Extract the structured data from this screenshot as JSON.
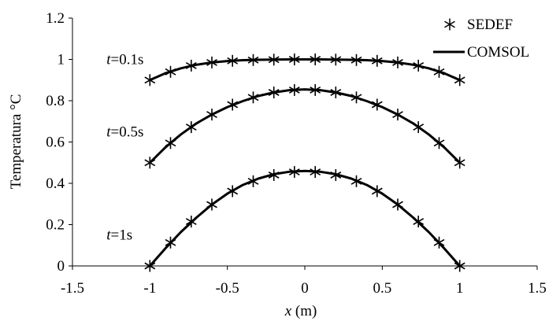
{
  "chart_data": {
    "type": "line",
    "title": "",
    "xlabel": {
      "var": "x",
      "unit": " (m)"
    },
    "ylabel": "Temperatura °C",
    "xlim": [
      -1.5,
      1.5
    ],
    "ylim": [
      0,
      1.2
    ],
    "xticks": [
      -1.5,
      -1,
      -0.5,
      0,
      0.5,
      1,
      1.5
    ],
    "xtick_labels": [
      "-1.5",
      "-1",
      "-0.5",
      "0",
      "0.5",
      "1",
      "1.5"
    ],
    "yticks": [
      0,
      0.2,
      0.4,
      0.6,
      0.8,
      1,
      1.2
    ],
    "ytick_labels": [
      "0",
      "0.2",
      "0.4",
      "0.6",
      "0.8",
      "1",
      "1.2"
    ],
    "grid": false,
    "legend": {
      "placement": "top-right",
      "entries": [
        {
          "label": "SEDEF",
          "marker": "asterisk"
        },
        {
          "label": "COMSOL",
          "marker": "line"
        }
      ]
    },
    "curve_labels": [
      {
        "var": "t",
        "text": "=0.1s",
        "anchor_x": -1.28,
        "anchor_y": 1.0
      },
      {
        "var": "t",
        "text": "=0.5s",
        "anchor_x": -1.28,
        "anchor_y": 0.65
      },
      {
        "var": "t",
        "text": "=1s",
        "anchor_x": -1.28,
        "anchor_y": 0.15
      }
    ],
    "series": [
      {
        "time": "0.1s",
        "sedef_x": [
          -1.0,
          -0.867,
          -0.733,
          -0.6,
          -0.467,
          -0.333,
          -0.2,
          -0.067,
          0.067,
          0.2,
          0.333,
          0.467,
          0.6,
          0.733,
          0.867,
          1.0
        ],
        "sedef_y": [
          0.9,
          0.94,
          0.97,
          0.985,
          0.993,
          0.997,
          0.999,
          1.0,
          1.0,
          0.999,
          0.997,
          0.993,
          0.985,
          0.97,
          0.94,
          0.9
        ],
        "comsol_x": [
          -1.0,
          -0.9,
          -0.8,
          -0.7,
          -0.6,
          -0.5,
          -0.4,
          -0.3,
          -0.2,
          -0.1,
          0.0,
          0.1,
          0.2,
          0.3,
          0.4,
          0.5,
          0.6,
          0.7,
          0.8,
          0.9,
          1.0
        ],
        "comsol_y": [
          0.9,
          0.933,
          0.957,
          0.974,
          0.985,
          0.992,
          0.996,
          0.998,
          0.999,
          1.0,
          1.0,
          1.0,
          0.999,
          0.998,
          0.996,
          0.992,
          0.985,
          0.974,
          0.957,
          0.933,
          0.9
        ]
      },
      {
        "time": "0.5s",
        "sedef_x": [
          -1.0,
          -0.867,
          -0.733,
          -0.6,
          -0.467,
          -0.333,
          -0.2,
          -0.067,
          0.067,
          0.2,
          0.333,
          0.467,
          0.6,
          0.733,
          0.867,
          1.0
        ],
        "sedef_y": [
          0.5,
          0.595,
          0.672,
          0.733,
          0.781,
          0.816,
          0.84,
          0.852,
          0.852,
          0.84,
          0.816,
          0.781,
          0.733,
          0.672,
          0.595,
          0.5
        ],
        "comsol_x": [
          -1.0,
          -0.9,
          -0.8,
          -0.7,
          -0.6,
          -0.5,
          -0.4,
          -0.3,
          -0.2,
          -0.1,
          0.0,
          0.1,
          0.2,
          0.3,
          0.4,
          0.5,
          0.6,
          0.7,
          0.8,
          0.9,
          1.0
        ],
        "comsol_y": [
          0.5,
          0.574,
          0.637,
          0.69,
          0.733,
          0.769,
          0.798,
          0.823,
          0.84,
          0.851,
          0.855,
          0.851,
          0.84,
          0.823,
          0.798,
          0.769,
          0.733,
          0.69,
          0.637,
          0.574,
          0.5
        ]
      },
      {
        "time": "1s",
        "sedef_x": [
          -1.0,
          -0.867,
          -0.733,
          -0.6,
          -0.467,
          -0.333,
          -0.2,
          -0.067,
          0.067,
          0.2,
          0.333,
          0.467,
          0.6,
          0.733,
          0.867,
          1.0
        ],
        "sedef_y": [
          0.0,
          0.113,
          0.215,
          0.297,
          0.362,
          0.41,
          0.44,
          0.455,
          0.455,
          0.44,
          0.41,
          0.362,
          0.297,
          0.215,
          0.113,
          0.0
        ],
        "comsol_x": [
          -1.0,
          -0.9,
          -0.8,
          -0.7,
          -0.6,
          -0.5,
          -0.4,
          -0.3,
          -0.2,
          -0.1,
          0.0,
          0.1,
          0.2,
          0.3,
          0.4,
          0.5,
          0.6,
          0.7,
          0.8,
          0.9,
          1.0
        ],
        "comsol_y": [
          0.0,
          0.085,
          0.164,
          0.234,
          0.297,
          0.35,
          0.392,
          0.423,
          0.444,
          0.456,
          0.46,
          0.456,
          0.444,
          0.423,
          0.392,
          0.35,
          0.297,
          0.234,
          0.164,
          0.085,
          0.0
        ]
      }
    ]
  }
}
